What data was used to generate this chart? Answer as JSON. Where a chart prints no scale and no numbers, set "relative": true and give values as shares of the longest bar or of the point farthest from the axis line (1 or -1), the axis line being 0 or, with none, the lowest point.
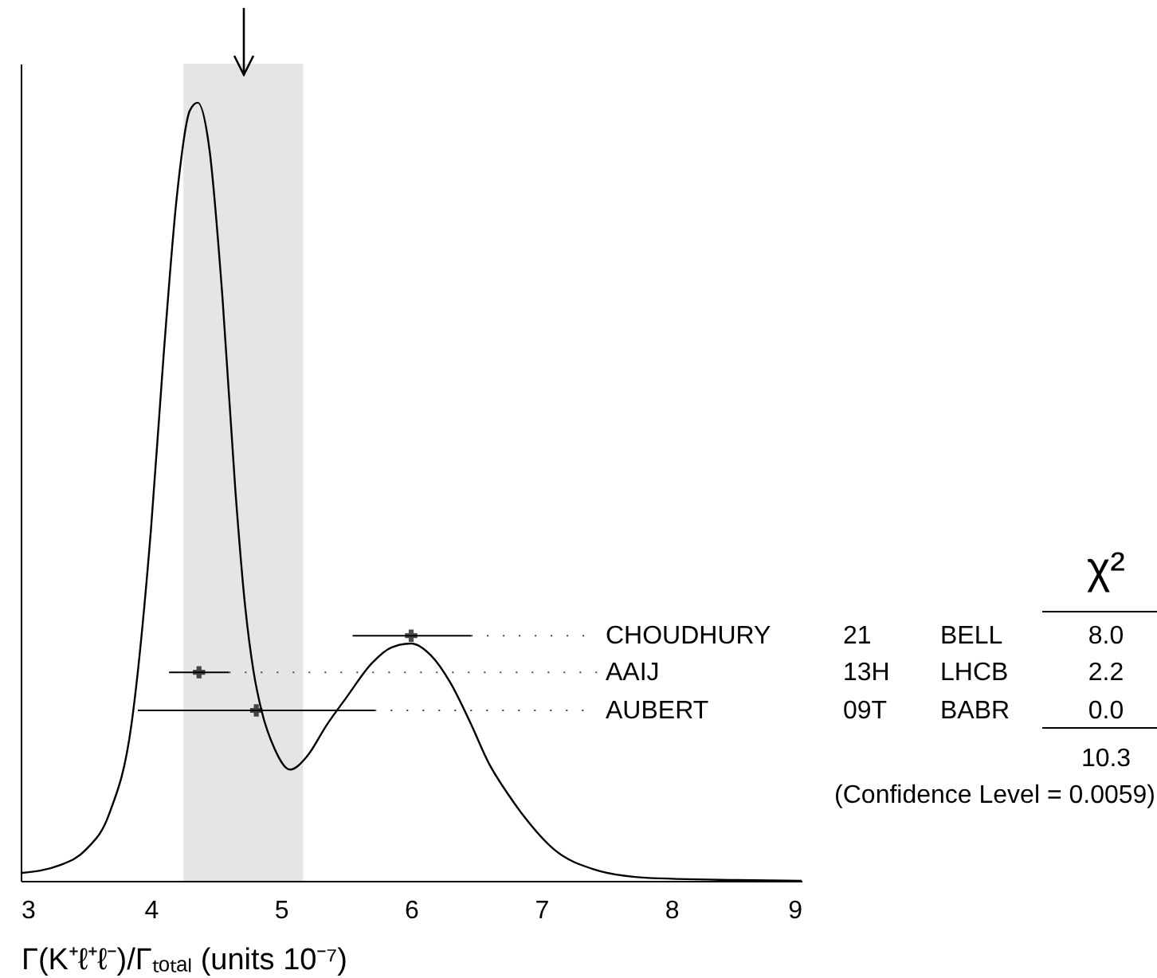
{
  "chart_data": {
    "type": "line",
    "relative": true,
    "xlabel": "Γ(K⁺ℓ⁺ℓ⁻)/Γₜₒₜₐₗ (units 10⁻⁷)",
    "xlim": [
      3,
      9
    ],
    "xticks": [
      3,
      4,
      5,
      6,
      7,
      8,
      9
    ],
    "series": [
      {
        "color": "#000000",
        "x": [
          3.0,
          3.3,
          3.5,
          3.68,
          3.85,
          4.0,
          4.1,
          4.2,
          4.3,
          4.36,
          4.45,
          4.55,
          4.65,
          4.72,
          4.79,
          4.85,
          4.95,
          5.07,
          5.2,
          5.35,
          5.5,
          5.7,
          5.85,
          6.0,
          6.15,
          6.3,
          6.45,
          6.6,
          6.75,
          6.88,
          7.1,
          7.4,
          7.8,
          8.5,
          9.0
        ],
        "values": [
          0.01,
          0.02,
          0.04,
          0.086,
          0.2,
          0.45,
          0.68,
          0.88,
          0.99,
          1.0,
          0.94,
          0.75,
          0.5,
          0.36,
          0.268,
          0.219,
          0.17,
          0.143,
          0.16,
          0.2,
          0.235,
          0.28,
          0.3,
          0.305,
          0.29,
          0.255,
          0.205,
          0.15,
          0.11,
          0.08,
          0.04,
          0.015,
          0.004,
          0.001,
          0.0
        ]
      },
      {
        "type": "scatter",
        "marker": "cross",
        "color": "#000000",
        "x": [
          6.0,
          4.37,
          4.81
        ],
        "values": [
          0.315,
          0.268,
          0.219
        ],
        "xerrors": [
          [
            5.55,
            6.46
          ],
          [
            4.14,
            4.6
          ],
          [
            3.9,
            5.72
          ]
        ]
      }
    ],
    "bands": [
      {
        "axis": "x",
        "from": 4.25,
        "to": 5.17,
        "color": "#e5e5e5"
      }
    ],
    "annotations": [
      "CHOUDHURY",
      "21",
      "BELL",
      "8.0",
      "AAIJ",
      "13H",
      "LHCB",
      "2.2",
      "AUBERT",
      "09T",
      "BABR",
      "0.0",
      "χ²",
      "10.3",
      "(Confidence Level = 0.0059)"
    ]
  }
}
